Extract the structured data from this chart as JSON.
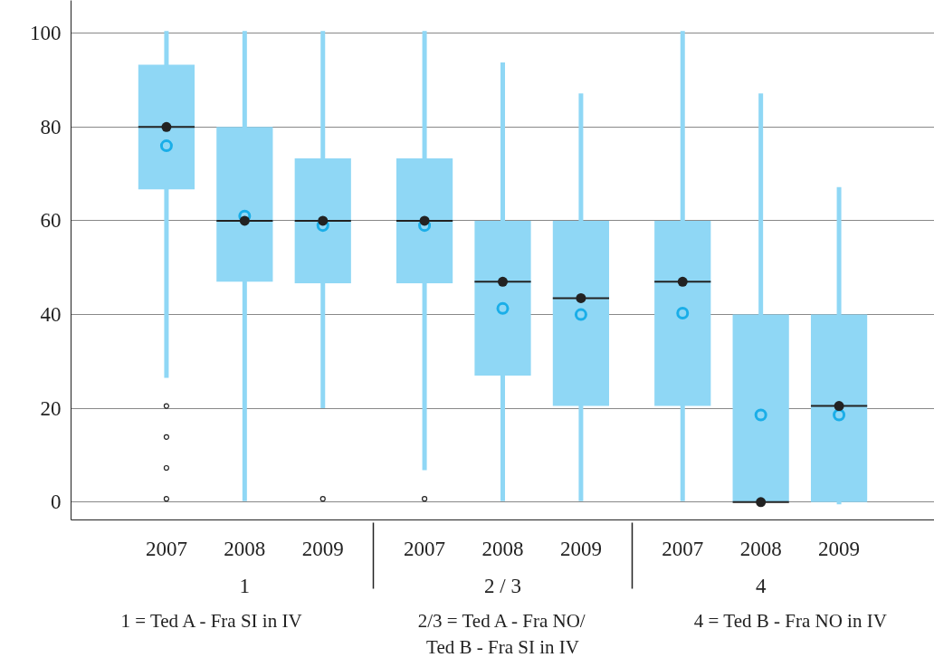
{
  "chart_data": {
    "type": "box",
    "categories": [
      "2007",
      "2008",
      "2009",
      "2007",
      "2008",
      "2009",
      "2007",
      "2008",
      "2009"
    ],
    "series": [
      {
        "color": "#8fd7f5",
        "boxes": [
          {
            "low": 27,
            "q1": 66.7,
            "median": 80,
            "q3": 93.3,
            "high": 100,
            "mean": 76,
            "outliers": [
              20.5,
              13.9,
              7.3,
              0.7
            ]
          },
          {
            "low": 0.7,
            "q1": 47,
            "median": 60,
            "q3": 80,
            "high": 100,
            "mean": 61
          },
          {
            "low": 20.5,
            "q1": 46.7,
            "median": 60,
            "q3": 73.3,
            "high": 100,
            "mean": 59,
            "outliers": [
              0.7
            ]
          },
          {
            "low": 7.3,
            "q1": 46.7,
            "median": 60,
            "q3": 73.3,
            "high": 100,
            "mean": 59,
            "outliers": [
              0.7
            ]
          },
          {
            "low": 0.7,
            "q1": 27,
            "median": 47,
            "q3": 60,
            "high": 93.3,
            "mean": 41.3
          },
          {
            "low": 0.7,
            "q1": 20.5,
            "median": 43.5,
            "q3": 60,
            "high": 86.7,
            "mean": 40
          },
          {
            "low": 0.7,
            "q1": 20.5,
            "median": 47,
            "q3": 60,
            "high": 100,
            "mean": 40.3
          },
          {
            "low": 0,
            "q1": 0,
            "median": 0,
            "q3": 40,
            "high": 86.7,
            "mean": 18.6
          },
          {
            "low": 0,
            "q1": 0,
            "median": 20.5,
            "q3": 40,
            "high": 66.7,
            "mean": 18.6
          }
        ]
      },
      {
        "type": "scatter",
        "color": "#222222",
        "marker": "circle",
        "values": [
          80,
          60,
          60,
          60,
          47,
          43.5,
          47,
          0,
          20.5
        ]
      }
    ],
    "ylim": [
      -3.8,
      107
    ],
    "yticks": [
      0,
      20,
      40,
      60,
      80,
      100
    ],
    "grid": "y",
    "annotations": [
      "1",
      "2 / 3",
      "4",
      "1 =  Ted A - Fra SI in IV",
      "2/3 = Ted A - Fra NO/\nTed B - Fra SI in IV",
      "4 = Ted B - Fra NO in IV"
    ]
  }
}
